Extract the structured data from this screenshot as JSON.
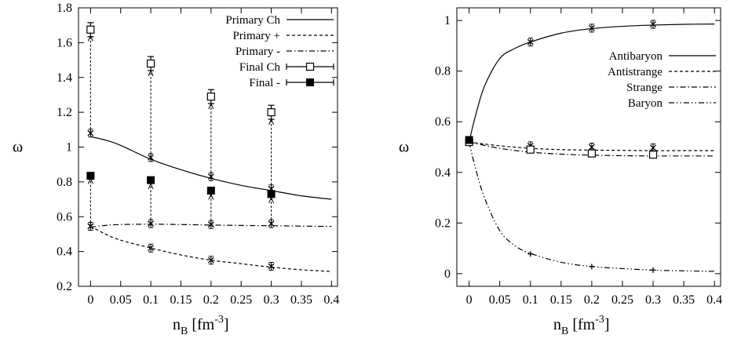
{
  "chart_data": [
    {
      "type": "line",
      "ylabel": "ω",
      "xlabel_main": "n",
      "xlabel_sub": "B",
      "xlabel_unit": "[fm",
      "xlabel_exp": "-3",
      "xlabel_close": "]",
      "xlim": [
        -0.02,
        0.41
      ],
      "ylim": [
        0.2,
        1.8
      ],
      "xticks": [
        0,
        0.05,
        0.1,
        0.15,
        0.2,
        0.25,
        0.3,
        0.35,
        0.4
      ],
      "xticklabels": [
        "0",
        "0.05",
        "0.1",
        "0.15",
        "0.2",
        "0.25",
        "0.3",
        "0.35",
        "0.4"
      ],
      "yticks": [
        0.2,
        0.4,
        0.6,
        0.8,
        1.0,
        1.2,
        1.4,
        1.6,
        1.8
      ],
      "yticklabels": [
        "0.2",
        "0.4",
        "0.6",
        "0.8",
        "1",
        "1.2",
        "1.4",
        "1.6",
        "1.8"
      ],
      "legend_position": "top-right",
      "curves": [
        {
          "name": "Primary Ch",
          "style": "solid",
          "x": [
            0,
            0.025,
            0.05,
            0.1,
            0.15,
            0.2,
            0.25,
            0.3,
            0.35,
            0.4
          ],
          "y": [
            1.06,
            1.04,
            1.01,
            0.93,
            0.87,
            0.82,
            0.78,
            0.75,
            0.72,
            0.7
          ]
        },
        {
          "name": "Primary +",
          "style": "dashed",
          "x": [
            0,
            0.025,
            0.05,
            0.1,
            0.15,
            0.2,
            0.25,
            0.3,
            0.35,
            0.4
          ],
          "y": [
            0.545,
            0.5,
            0.465,
            0.42,
            0.38,
            0.35,
            0.33,
            0.31,
            0.295,
            0.285
          ]
        },
        {
          "name": "Primary -",
          "style": "dashdot",
          "x": [
            0,
            0.025,
            0.05,
            0.1,
            0.15,
            0.2,
            0.25,
            0.3,
            0.35,
            0.4
          ],
          "y": [
            0.54,
            0.55,
            0.555,
            0.557,
            0.555,
            0.552,
            0.55,
            0.548,
            0.546,
            0.544
          ]
        }
      ],
      "points": [
        {
          "series": "Primary Ch",
          "marker": "x",
          "x": [
            0,
            0.1,
            0.2,
            0.3
          ],
          "y": [
            1.08,
            0.94,
            0.83,
            0.76
          ]
        },
        {
          "series": "Primary +",
          "marker": "x",
          "x": [
            0,
            0.1,
            0.2,
            0.3
          ],
          "y": [
            0.545,
            0.42,
            0.35,
            0.315
          ]
        },
        {
          "series": "Primary -",
          "marker": "x",
          "x": [
            0,
            0.1,
            0.2,
            0.3
          ],
          "y": [
            0.545,
            0.56,
            0.555,
            0.56
          ]
        },
        {
          "series": "Final Ch",
          "marker": "open-square",
          "x": [
            0,
            0.1,
            0.2,
            0.3
          ],
          "y": [
            1.675,
            1.48,
            1.29,
            1.2
          ],
          "err": [
            0.04,
            0.04,
            0.04,
            0.04
          ]
        },
        {
          "series": "Final -",
          "marker": "filled-square",
          "x": [
            0,
            0.1,
            0.2,
            0.3
          ],
          "y": [
            0.835,
            0.81,
            0.75,
            0.73
          ],
          "err": [
            0.015,
            0.015,
            0.015,
            0.015
          ]
        }
      ],
      "arrows": [
        {
          "x": 0,
          "from": 1.08,
          "to": 1.64
        },
        {
          "x": 0.1,
          "from": 0.94,
          "to": 1.44
        },
        {
          "x": 0.2,
          "from": 0.83,
          "to": 1.25
        },
        {
          "x": 0.3,
          "from": 0.76,
          "to": 1.16
        },
        {
          "x": 0,
          "from": 0.545,
          "to": 0.82
        },
        {
          "x": 0.1,
          "from": 0.56,
          "to": 0.79
        },
        {
          "x": 0.2,
          "from": 0.555,
          "to": 0.73
        },
        {
          "x": 0.3,
          "from": 0.56,
          "to": 0.71
        }
      ],
      "legend": [
        {
          "label": "Primary Ch",
          "kind": "solid"
        },
        {
          "label": "Primary +",
          "kind": "dashed"
        },
        {
          "label": "Primary -",
          "kind": "dashdot"
        },
        {
          "label": "Final Ch",
          "kind": "open-square-err"
        },
        {
          "label": "Final -",
          "kind": "filled-square-err"
        }
      ]
    },
    {
      "type": "line",
      "ylabel": "ω",
      "xlabel_main": "n",
      "xlabel_sub": "B",
      "xlabel_unit": "[fm",
      "xlabel_exp": "-3",
      "xlabel_close": "]",
      "xlim": [
        -0.02,
        0.41
      ],
      "ylim": [
        -0.05,
        1.05
      ],
      "xticks": [
        0,
        0.05,
        0.1,
        0.15,
        0.2,
        0.25,
        0.3,
        0.35,
        0.4
      ],
      "xticklabels": [
        "0",
        "0.05",
        "0.1",
        "0.15",
        "0.2",
        "0.25",
        "0.3",
        "0.35",
        "0.4"
      ],
      "yticks": [
        0,
        0.2,
        0.4,
        0.6,
        0.8,
        1.0
      ],
      "yticklabels": [
        "0",
        "0.2",
        "0.4",
        "0.6",
        "0.8",
        "1"
      ],
      "legend_position": "top-right",
      "curves": [
        {
          "name": "Antibaryon",
          "style": "solid",
          "x": [
            0,
            0.01,
            0.025,
            0.05,
            0.075,
            0.1,
            0.15,
            0.2,
            0.25,
            0.3,
            0.35,
            0.4
          ],
          "y": [
            0.52,
            0.62,
            0.74,
            0.85,
            0.89,
            0.915,
            0.95,
            0.968,
            0.977,
            0.982,
            0.985,
            0.986
          ]
        },
        {
          "name": "Antistrange",
          "style": "dashed",
          "x": [
            0,
            0.05,
            0.1,
            0.15,
            0.2,
            0.25,
            0.3,
            0.35,
            0.4
          ],
          "y": [
            0.52,
            0.505,
            0.495,
            0.49,
            0.488,
            0.487,
            0.486,
            0.486,
            0.486
          ]
        },
        {
          "name": "Strange",
          "style": "dashdot",
          "x": [
            0,
            0.05,
            0.1,
            0.15,
            0.2,
            0.25,
            0.3,
            0.35,
            0.4
          ],
          "y": [
            0.52,
            0.495,
            0.48,
            0.472,
            0.468,
            0.466,
            0.465,
            0.465,
            0.465
          ]
        },
        {
          "name": "Baryon",
          "style": "dashdotdot",
          "x": [
            0,
            0.01,
            0.025,
            0.05,
            0.075,
            0.1,
            0.15,
            0.2,
            0.25,
            0.3,
            0.35,
            0.4
          ],
          "y": [
            0.52,
            0.42,
            0.3,
            0.17,
            0.11,
            0.08,
            0.045,
            0.028,
            0.02,
            0.014,
            0.011,
            0.009
          ]
        }
      ],
      "points": [
        {
          "series": "Antibaryon",
          "marker": "x",
          "x": [
            0.1,
            0.2,
            0.3
          ],
          "y": [
            0.915,
            0.97,
            0.985
          ]
        },
        {
          "series": "Antistrange",
          "marker": "x",
          "x": [
            0.1,
            0.2,
            0.3
          ],
          "y": [
            0.505,
            0.5,
            0.497
          ]
        },
        {
          "series": "Strange",
          "marker": "open-square",
          "x": [
            0,
            0.1,
            0.2,
            0.3
          ],
          "y": [
            0.52,
            0.49,
            0.475,
            0.47
          ]
        },
        {
          "series": "Baryon",
          "marker": "plus",
          "x": [
            0.1,
            0.2,
            0.3
          ],
          "y": [
            0.078,
            0.028,
            0.014
          ]
        },
        {
          "series": "start",
          "marker": "filled-square",
          "x": [
            0
          ],
          "y": [
            0.528
          ]
        }
      ],
      "legend": [
        {
          "label": "Antibaryon",
          "kind": "solid"
        },
        {
          "label": "Antistrange",
          "kind": "dashed"
        },
        {
          "label": "Strange",
          "kind": "dashdot"
        },
        {
          "label": "Baryon",
          "kind": "dashdotdot"
        }
      ]
    }
  ]
}
